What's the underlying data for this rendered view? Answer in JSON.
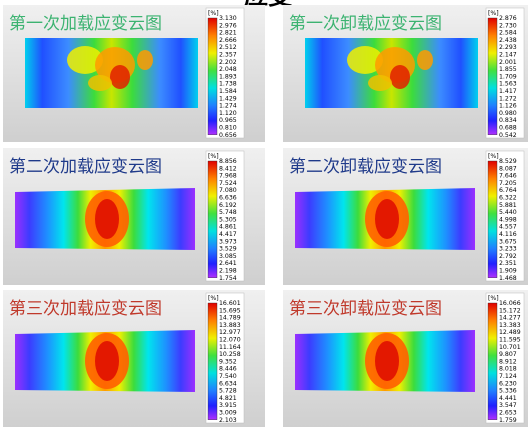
{
  "header": {
    "title": "应变"
  },
  "panels": [
    {
      "title": "第一次加载应变云图",
      "unit": "[%]",
      "legend": [
        "3.130",
        "2.976",
        "2.821",
        "2.666",
        "2.512",
        "2.357",
        "2.202",
        "2.048",
        "1.893",
        "1.738",
        "1.584",
        "1.429",
        "1.274",
        "1.120",
        "0.965",
        "0.810",
        "0.656"
      ]
    },
    {
      "title": "第一次卸载应变云图",
      "unit": "[%]",
      "legend": [
        "2.876",
        "2.730",
        "2.584",
        "2.438",
        "2.293",
        "2.147",
        "2.001",
        "1.855",
        "1.709",
        "1.563",
        "1.417",
        "1.272",
        "1.126",
        "0.980",
        "0.834",
        "0.688",
        "0.542"
      ]
    },
    {
      "title": "第二次加载应变云图",
      "unit": "[%]",
      "legend": [
        "8.856",
        "8.412",
        "7.968",
        "7.524",
        "7.080",
        "6.636",
        "6.192",
        "5.748",
        "5.305",
        "4.861",
        "4.417",
        "3.973",
        "3.529",
        "3.085",
        "2.641",
        "2.198",
        "1.754"
      ]
    },
    {
      "title": "第二次卸载应变云图",
      "unit": "[%]",
      "legend": [
        "8.529",
        "8.087",
        "7.646",
        "7.205",
        "6.764",
        "6.322",
        "5.881",
        "5.440",
        "4.998",
        "4.557",
        "4.116",
        "3.675",
        "3.233",
        "2.792",
        "2.351",
        "1.909",
        "1.468"
      ]
    },
    {
      "title": "第三次加载应变云图",
      "unit": "[%]",
      "legend": [
        "16.601",
        "15.695",
        "14.789",
        "13.883",
        "12.977",
        "12.070",
        "11.164",
        "10.258",
        "9.352",
        "8.446",
        "7.540",
        "6.634",
        "5.728",
        "4.821",
        "3.915",
        "3.009",
        "2.103"
      ]
    },
    {
      "title": "第三次卸载应变云图",
      "unit": "[%]",
      "legend": [
        "16.066",
        "15.172",
        "14.277",
        "13.383",
        "12.489",
        "11.595",
        "10.701",
        "9.807",
        "8.912",
        "8.018",
        "7.124",
        "6.230",
        "5.336",
        "4.441",
        "3.547",
        "2.653",
        "1.759"
      ]
    }
  ]
}
